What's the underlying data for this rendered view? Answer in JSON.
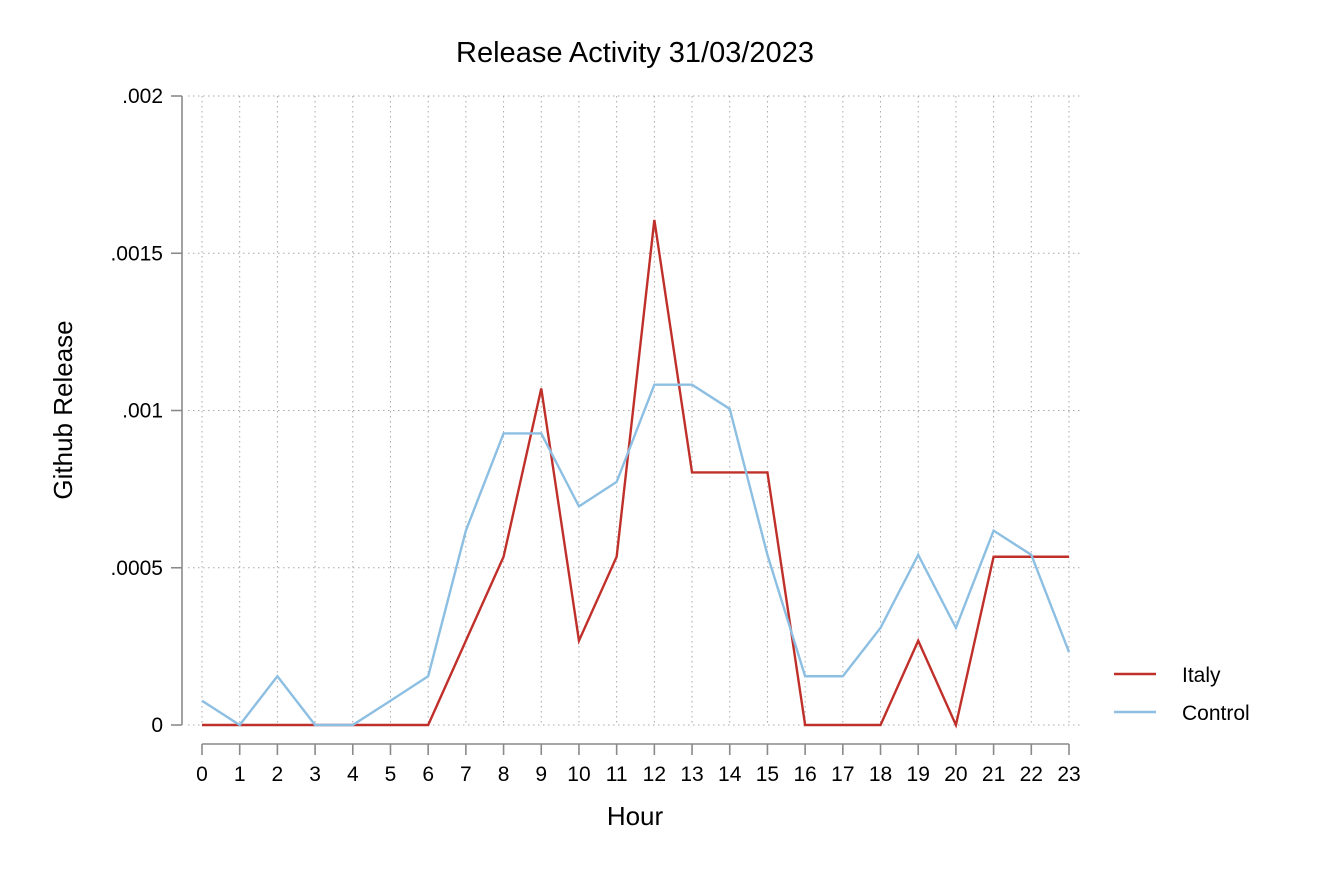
{
  "chart_data": {
    "type": "line",
    "title": "Release Activity 31/03/2023",
    "xlabel": "Hour",
    "ylabel": "Github Release",
    "x": [
      0,
      1,
      2,
      3,
      4,
      5,
      6,
      7,
      8,
      9,
      10,
      11,
      12,
      13,
      14,
      15,
      16,
      17,
      18,
      19,
      20,
      21,
      22,
      23
    ],
    "xlim": [
      0,
      23
    ],
    "ylim": [
      0,
      0.002
    ],
    "yticks": [
      0,
      0.0005,
      0.001,
      0.0015,
      0.002
    ],
    "ytick_labels": [
      "0",
      ".0005",
      ".001",
      ".0015",
      ".002"
    ],
    "xtick_labels": [
      "0",
      "1",
      "2",
      "3",
      "4",
      "5",
      "6",
      "7",
      "8",
      "9",
      "10",
      "11",
      "12",
      "13",
      "14",
      "15",
      "16",
      "17",
      "18",
      "19",
      "20",
      "21",
      "22",
      "23"
    ],
    "grid": true,
    "legend_position": "right",
    "series": [
      {
        "name": "Italy",
        "color": "#c0302a",
        "values": [
          0,
          0,
          0,
          0,
          0,
          0,
          0,
          0.000268,
          0.000535,
          0.00107,
          0.000268,
          0.000535,
          0.001606,
          0.000803,
          0.000803,
          0.000803,
          0,
          0,
          0,
          0.000268,
          0,
          0.000535,
          0.000535,
          0.000535
        ]
      },
      {
        "name": "Control",
        "color": "#8dbfe3",
        "values": [
          7.7e-05,
          0,
          0.000155,
          0,
          0,
          7.7e-05,
          0.000155,
          0.000618,
          0.000927,
          0.000927,
          0.000695,
          0.000773,
          0.001082,
          0.001082,
          0.001005,
          0.000541,
          0.000155,
          0.000155,
          0.000309,
          0.000541,
          0.000309,
          0.000618,
          0.000541,
          0.000232
        ]
      }
    ]
  }
}
